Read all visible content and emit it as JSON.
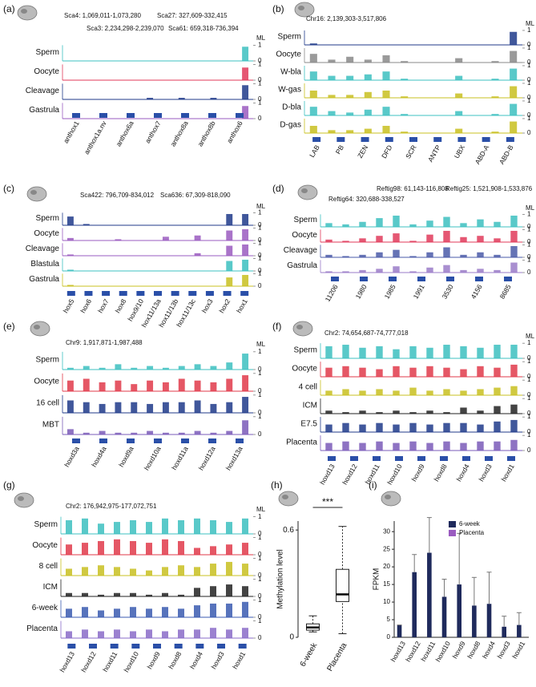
{
  "chart_data": [
    {
      "type": "track",
      "label": "(a)",
      "regions": [
        "Sca4: 1,069,011-1,073,280",
        "Sca27: 327,609-332,415",
        "Sca3: 2,234,298-2,239,070",
        "Sca61: 659,318-736,394"
      ],
      "axis_label": "ML",
      "ylim": [
        0,
        1
      ],
      "yticks": [
        0,
        1
      ],
      "series": [
        {
          "name": "Sperm",
          "color": "#3cc0c0",
          "values": [
            0,
            0,
            0,
            0,
            0,
            0,
            0,
            0,
            0,
            0,
            0,
            0.9
          ]
        },
        {
          "name": "Oocyte",
          "color": "#e03a5a",
          "values": [
            0,
            0,
            0,
            0,
            0,
            0,
            0,
            0,
            0,
            0,
            0,
            0.8
          ]
        },
        {
          "name": "Cleavage",
          "color": "#1f3a8a",
          "values": [
            0,
            0,
            0,
            0,
            0,
            0.1,
            0,
            0.1,
            0,
            0.1,
            0,
            0.9
          ]
        },
        {
          "name": "Gastrula",
          "color": "#9a5bc0",
          "values": [
            0,
            0,
            0,
            0,
            0,
            0,
            0,
            0,
            0,
            0,
            0,
            0.8
          ]
        }
      ],
      "genes": [
        "anthox1",
        "anthox1a.nv",
        "anthox6a",
        "anthox7",
        "anthox8a",
        "anthox8b",
        "anthox6"
      ]
    },
    {
      "type": "track",
      "label": "(b)",
      "regions": [
        "Chr16: 2,139,303-3,517,806"
      ],
      "axis_label": "ML",
      "ylim": [
        0,
        1
      ],
      "yticks": [
        0,
        1
      ],
      "series": [
        {
          "name": "Sperm",
          "color": "#1f3a8a",
          "values": [
            0.1,
            0,
            0,
            0,
            0,
            0,
            0,
            0,
            0,
            0,
            0,
            0.9
          ]
        },
        {
          "name": "Oocyte",
          "color": "#888888",
          "values": [
            0.6,
            0.2,
            0.4,
            0.2,
            0.5,
            0.1,
            0,
            0,
            0.3,
            0,
            0.1,
            0.8
          ]
        },
        {
          "name": "W-bla",
          "color": "#3cc0c0",
          "values": [
            0.6,
            0.3,
            0.3,
            0.4,
            0.6,
            0.1,
            0,
            0,
            0.3,
            0,
            0.1,
            0.8
          ]
        },
        {
          "name": "W-gas",
          "color": "#c8c020",
          "values": [
            0.5,
            0.2,
            0.2,
            0.4,
            0.5,
            0.1,
            0,
            0,
            0.3,
            0,
            0.1,
            0.8
          ]
        },
        {
          "name": "D-bla",
          "color": "#3cc0c0",
          "values": [
            0.6,
            0.3,
            0.2,
            0.4,
            0.6,
            0.1,
            0,
            0,
            0.3,
            0,
            0.1,
            0.8
          ]
        },
        {
          "name": "D-gas",
          "color": "#c8c020",
          "values": [
            0.5,
            0.2,
            0.2,
            0.3,
            0.5,
            0.1,
            0,
            0,
            0.3,
            0,
            0.1,
            0.8
          ]
        }
      ],
      "genes": [
        "LAB",
        "PB",
        "ZEN",
        "DFD",
        "SCR",
        "ANTP",
        "UBX",
        "ABD-A",
        "ABD-B"
      ]
    },
    {
      "type": "track",
      "label": "(c)",
      "regions": [
        "Sca422: 796,709-834,012",
        "Sca636: 67,309-818,090"
      ],
      "axis_label": "ML",
      "ylim": [
        0,
        1
      ],
      "yticks": [
        0,
        1
      ],
      "series": [
        {
          "name": "Sperm",
          "color": "#1f3a8a",
          "values": [
            0.7,
            0.1,
            0,
            0,
            0,
            0,
            0,
            0,
            0,
            0,
            0.9,
            0.9
          ]
        },
        {
          "name": "Oocyte",
          "color": "#9a5bc0",
          "values": [
            0.2,
            0,
            0,
            0.1,
            0,
            0,
            0.3,
            0,
            0.4,
            0,
            0.8,
            0.9
          ]
        },
        {
          "name": "Cleavage",
          "color": "#9a5bc0",
          "values": [
            0.1,
            0,
            0,
            0,
            0,
            0,
            0,
            0,
            0.2,
            0,
            0.8,
            0.9
          ]
        },
        {
          "name": "Blastula",
          "color": "#3cc0c0",
          "values": [
            0.1,
            0,
            0,
            0,
            0,
            0,
            0,
            0,
            0,
            0,
            0.8,
            0.9
          ]
        },
        {
          "name": "Gastrula",
          "color": "#c8c020",
          "values": [
            0.1,
            0,
            0,
            0,
            0,
            0,
            0,
            0,
            0,
            0,
            0.7,
            0.9
          ]
        }
      ],
      "genes": [
        "hox5",
        "hox6",
        "hox7",
        "hox8",
        "hox9/10",
        "hox11/13a",
        "hox11/13b",
        "hox11/13c",
        "hox3",
        "hox2",
        "hox1"
      ]
    },
    {
      "type": "track",
      "label": "(d)",
      "regions": [
        "Reftig98: 61,143-116,808",
        "Reftig64: 320,688-338,527",
        "Reftig25: 1,521,908-1,533,876"
      ],
      "axis_label": "ML",
      "ylim": [
        0,
        1
      ],
      "yticks": [
        0,
        1
      ],
      "series": [
        {
          "name": "Sperm",
          "color": "#3cc0c0",
          "values": [
            0.3,
            0.2,
            0.4,
            0.7,
            0.9,
            0.2,
            0.5,
            0.8,
            0.3,
            0.6,
            0.4,
            0.9
          ]
        },
        {
          "name": "Oocyte",
          "color": "#e03a5a",
          "values": [
            0.2,
            0.1,
            0.3,
            0.5,
            0.7,
            0.1,
            0.6,
            0.9,
            0.4,
            0.5,
            0.3,
            0.9
          ]
        },
        {
          "name": "Cleavage",
          "color": "#4a5aa8",
          "values": [
            0.2,
            0.1,
            0.2,
            0.4,
            0.6,
            0.1,
            0.4,
            0.8,
            0.2,
            0.4,
            0.2,
            0.9
          ]
        },
        {
          "name": "Gastrula",
          "color": "#9a7bc8",
          "values": [
            0.1,
            0.1,
            0.2,
            0.3,
            0.5,
            0.1,
            0.4,
            0.6,
            0.2,
            0.3,
            0.2,
            0.8
          ]
        }
      ],
      "genes": [
        "11206",
        "1980",
        "1985",
        "1991",
        "3530",
        "4156",
        "8685"
      ]
    },
    {
      "type": "track",
      "label": "(e)",
      "regions": [
        "Chr9: 1,917,871-1,987,488"
      ],
      "axis_label": "ML",
      "ylim": [
        0,
        1
      ],
      "yticks": [
        0,
        1
      ],
      "series": [
        {
          "name": "Sperm",
          "color": "#3cc0c0",
          "values": [
            0.1,
            0.2,
            0.1,
            0.3,
            0.1,
            0.2,
            0.1,
            0.2,
            0.3,
            0.2,
            0.4,
            0.9
          ]
        },
        {
          "name": "Oocyte",
          "color": "#e03a4a",
          "values": [
            0.6,
            0.7,
            0.5,
            0.6,
            0.4,
            0.6,
            0.5,
            0.7,
            0.6,
            0.5,
            0.7,
            0.9
          ]
        },
        {
          "name": "16 cell",
          "color": "#1f3a8a",
          "values": [
            0.7,
            0.6,
            0.5,
            0.6,
            0.6,
            0.5,
            0.6,
            0.6,
            0.7,
            0.5,
            0.6,
            0.9
          ]
        },
        {
          "name": "MBT",
          "color": "#7a5bb8",
          "values": [
            0.3,
            0.1,
            0.2,
            0.1,
            0.1,
            0.2,
            0.1,
            0.1,
            0.2,
            0.1,
            0.2,
            0.8
          ]
        }
      ],
      "genes": [
        "hoxd3a",
        "hoxd4a",
        "hoxd9a",
        "hoxd10a",
        "hoxd11a",
        "hoxd12a",
        "hoxd13a"
      ]
    },
    {
      "type": "track",
      "label": "(f)",
      "regions": [
        "Chr2:  74,654,687-74,777,018"
      ],
      "axis_label": "ML",
      "ylim": [
        0,
        1
      ],
      "yticks": [
        0,
        1
      ],
      "series": [
        {
          "name": "Sperm",
          "color": "#3cc0c0",
          "values": [
            0.8,
            0.9,
            0.7,
            0.8,
            0.6,
            0.8,
            0.7,
            0.9,
            0.8,
            0.7,
            0.9,
            0.9
          ]
        },
        {
          "name": "Oocyte",
          "color": "#e03a4a",
          "values": [
            0.6,
            0.7,
            0.6,
            0.5,
            0.7,
            0.6,
            0.7,
            0.6,
            0.5,
            0.7,
            0.6,
            0.8
          ]
        },
        {
          "name": "4 cell",
          "color": "#c8c020",
          "values": [
            0.3,
            0.4,
            0.3,
            0.4,
            0.3,
            0.5,
            0.3,
            0.4,
            0.3,
            0.4,
            0.5,
            0.6
          ]
        },
        {
          "name": "ICM",
          "color": "#222222",
          "values": [
            0.2,
            0.1,
            0.2,
            0.1,
            0.2,
            0.1,
            0.2,
            0.1,
            0.4,
            0.2,
            0.5,
            0.6
          ]
        },
        {
          "name": "E7.5",
          "color": "#1f3a8a",
          "values": [
            0.5,
            0.6,
            0.5,
            0.6,
            0.5,
            0.6,
            0.5,
            0.6,
            0.6,
            0.5,
            0.7,
            0.8
          ]
        },
        {
          "name": "Placenta",
          "color": "#7a5bb8",
          "values": [
            0.5,
            0.6,
            0.5,
            0.6,
            0.5,
            0.6,
            0.5,
            0.6,
            0.5,
            0.6,
            0.6,
            0.7
          ]
        }
      ],
      "genes": [
        "hoxd13",
        "hoxd12",
        "hoxd11",
        "hoxd10",
        "hoxd9",
        "hoxd8",
        "hoxd4",
        "hoxd3",
        "hoxd1"
      ]
    },
    {
      "type": "track",
      "label": "(g)",
      "regions": [
        "Chr2: 176,942,975-177,072,751"
      ],
      "axis_label": "ML",
      "ylim": [
        0,
        1
      ],
      "yticks": [
        0,
        1
      ],
      "series": [
        {
          "name": "Sperm",
          "color": "#3cc0c0",
          "values": [
            0.8,
            0.9,
            0.6,
            0.7,
            0.8,
            0.7,
            0.9,
            0.8,
            0.9,
            0.8,
            0.7,
            0.9
          ]
        },
        {
          "name": "Oocyte",
          "color": "#e03a4a",
          "values": [
            0.6,
            0.7,
            0.8,
            0.9,
            0.8,
            0.7,
            0.9,
            0.8,
            0.4,
            0.5,
            0.6,
            0.7
          ]
        },
        {
          "name": "8 cell",
          "color": "#c8c020",
          "values": [
            0.4,
            0.5,
            0.6,
            0.5,
            0.4,
            0.3,
            0.5,
            0.6,
            0.5,
            0.7,
            0.8,
            0.7
          ]
        },
        {
          "name": "ICM",
          "color": "#222222",
          "values": [
            0.2,
            0.2,
            0.1,
            0.2,
            0.2,
            0.1,
            0.2,
            0.1,
            0.5,
            0.6,
            0.7,
            0.6
          ]
        },
        {
          "name": "6-week",
          "color": "#3a5ab0",
          "values": [
            0.5,
            0.6,
            0.4,
            0.5,
            0.6,
            0.5,
            0.6,
            0.5,
            0.7,
            0.8,
            0.8,
            0.9
          ]
        },
        {
          "name": "Placenta",
          "color": "#8a6bc8",
          "values": [
            0.4,
            0.5,
            0.4,
            0.5,
            0.4,
            0.5,
            0.4,
            0.5,
            0.5,
            0.6,
            0.5,
            0.6
          ]
        }
      ],
      "genes": [
        "hoxd13",
        "hoxd12",
        "hoxd11",
        "hoxd10",
        "hoxd9",
        "hoxd8",
        "hoxd4",
        "hoxd3",
        "hoxd1"
      ]
    },
    {
      "type": "box",
      "label": "(h)",
      "y_label": "Methylation level",
      "annotation": "***",
      "categories": [
        "6-week",
        "Placenta"
      ],
      "min": [
        0.03,
        0.02
      ],
      "q1": [
        0.04,
        0.2
      ],
      "median": [
        0.055,
        0.24
      ],
      "q3": [
        0.075,
        0.38
      ],
      "max": [
        0.12,
        0.62
      ],
      "ylim": [
        0,
        0.65
      ],
      "yticks": [
        0,
        0.6
      ]
    },
    {
      "type": "bar",
      "label": "(i)",
      "y_label": "FPKM",
      "categories": [
        "hoxd13",
        "hoxd12",
        "hoxd11",
        "hoxd10",
        "hoxd9",
        "hoxd8",
        "hoxd4",
        "hoxd3",
        "hoxd1"
      ],
      "series": [
        {
          "name": "6-week",
          "color": "#1f2a5c",
          "values": [
            3.5,
            18.5,
            24,
            11.5,
            15,
            9,
            9.5,
            3,
            3.5
          ],
          "errors": [
            0,
            5,
            10,
            5,
            14.5,
            8,
            9,
            3,
            3.5
          ]
        },
        {
          "name": "Placenta",
          "color": "#9a5bc0",
          "values": [
            0,
            0,
            0,
            0,
            0,
            0,
            0,
            0,
            0
          ]
        }
      ],
      "ylim": [
        0,
        33
      ],
      "yticks": [
        0,
        5,
        10,
        15,
        20,
        25,
        30
      ]
    }
  ]
}
